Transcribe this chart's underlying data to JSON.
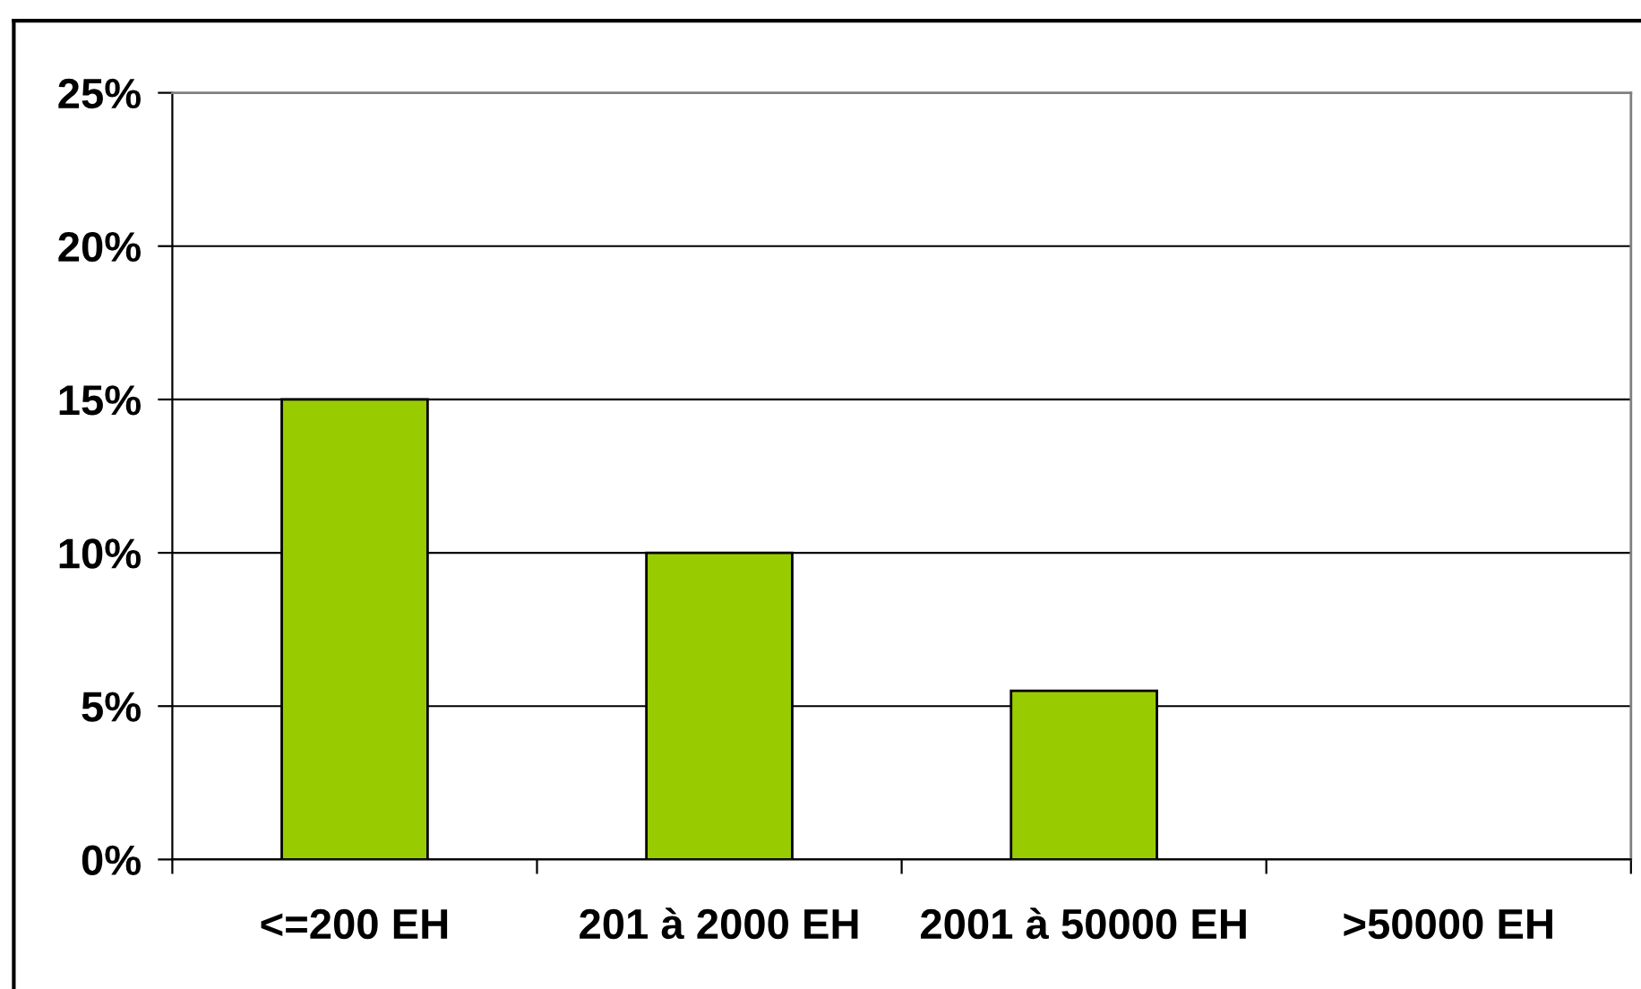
{
  "chart_data": {
    "type": "bar",
    "categories": [
      "<=200 EH",
      "201 à 2000 EH",
      "2001 à 50000 EH",
      ">50000 EH"
    ],
    "values": [
      15,
      10,
      5.5,
      null
    ],
    "color": "#99cc00",
    "ylim": [
      0,
      25
    ],
    "yticks": [
      {
        "value": 0,
        "label": "0%"
      },
      {
        "value": 5,
        "label": "5%"
      },
      {
        "value": 10,
        "label": "10%"
      },
      {
        "value": 15,
        "label": "15%"
      },
      {
        "value": 20,
        "label": "20%"
      },
      {
        "value": 25,
        "label": "25%"
      }
    ],
    "grid": "y"
  }
}
